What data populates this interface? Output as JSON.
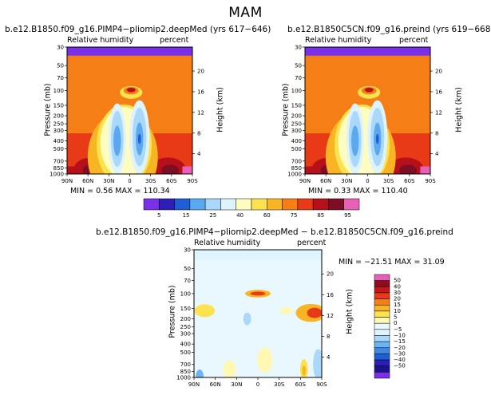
{
  "page": {
    "suptitle": "MAM"
  },
  "colors": {
    "abs_scale": [
      "#7a30e6",
      "#2b1fb8",
      "#1f5fd6",
      "#5aa8f0",
      "#a9d8fa",
      "#ddf3fd",
      "#fffcc0",
      "#fde24f",
      "#f9b424",
      "#f57f16",
      "#e83a16",
      "#b8101a",
      "#7e0e24",
      "#e960b8"
    ],
    "diff_scale": [
      "#7a30e6",
      "#1b138c",
      "#2b1fb8",
      "#1f5fd6",
      "#3f88e8",
      "#6bb5f5",
      "#a9d8fa",
      "#dff4fd",
      "#e9f7fe",
      "#fff8b4",
      "#fde24f",
      "#f9b424",
      "#f57f16",
      "#e83a16",
      "#c5161a",
      "#8f0b1e",
      "#e960b8"
    ]
  },
  "chart_data": [
    {
      "type": "heatmap",
      "title": "b.e12.B1850.f09_g16.PIMP4−pliomip2.deepMed (yrs 617−646)",
      "subtitle_left": "Relative humidity",
      "subtitle_right": "percent",
      "xlabel": "",
      "ylabel": "Pressure (mb)",
      "ylabel_right": "Height (km)",
      "x_ticks": [
        "90N",
        "60N",
        "30N",
        "0",
        "30S",
        "60S",
        "90S"
      ],
      "y_ticks": [
        "1000",
        "850",
        "700",
        "500",
        "400",
        "300",
        "250",
        "200",
        "150",
        "100",
        "70",
        "50",
        "30"
      ],
      "right_ticks": [
        "4",
        "8",
        "12",
        "16",
        "20"
      ],
      "stats": "MIN =   0.56   MAX = 110.34",
      "min": 0.56,
      "max": 110.34
    },
    {
      "type": "heatmap",
      "title": "b.e12.B1850C5CN.f09_g16.preind (yrs 619−668)",
      "subtitle_left": "Relative humidity",
      "subtitle_right": "percent",
      "xlabel": "",
      "ylabel": "Pressure (mb)",
      "ylabel_right": "Height (km)",
      "x_ticks": [
        "90N",
        "60N",
        "30N",
        "0",
        "30S",
        "60S",
        "90S"
      ],
      "y_ticks": [
        "1000",
        "850",
        "700",
        "500",
        "400",
        "300",
        "250",
        "200",
        "150",
        "100",
        "70",
        "50",
        "30"
      ],
      "right_ticks": [
        "4",
        "8",
        "12",
        "16",
        "20"
      ],
      "stats": "MIN =   0.33   MAX = 110.40",
      "min": 0.33,
      "max": 110.4
    },
    {
      "type": "heatmap",
      "title": "b.e12.B1850.f09_g16.PIMP4−pliomip2.deepMed − b.e12.B1850C5CN.f09_g16.preind",
      "subtitle_left": "Relative humidity",
      "subtitle_right": "percent",
      "xlabel": "",
      "ylabel": "Pressure (mb)",
      "ylabel_right": "Height (km)",
      "x_ticks": [
        "90N",
        "60N",
        "30N",
        "0",
        "30S",
        "60S",
        "90S"
      ],
      "y_ticks": [
        "1000",
        "850",
        "700",
        "500",
        "400",
        "300",
        "250",
        "200",
        "150",
        "100",
        "70",
        "50",
        "30"
      ],
      "right_ticks": [
        "4",
        "8",
        "12",
        "16",
        "20"
      ],
      "stats": "MIN = −21.51    MAX =   31.09",
      "min": -21.51,
      "max": 31.09
    }
  ],
  "legends": {
    "abs": {
      "labels": [
        "5",
        "15",
        "25",
        "40",
        "60",
        "75",
        "85",
        "95"
      ]
    },
    "diff": {
      "labels": [
        "50",
        "40",
        "30",
        "20",
        "15",
        "10",
        "5",
        "0",
        "−5",
        "−10",
        "−15",
        "−20",
        "−30",
        "−40",
        "−50"
      ]
    }
  }
}
